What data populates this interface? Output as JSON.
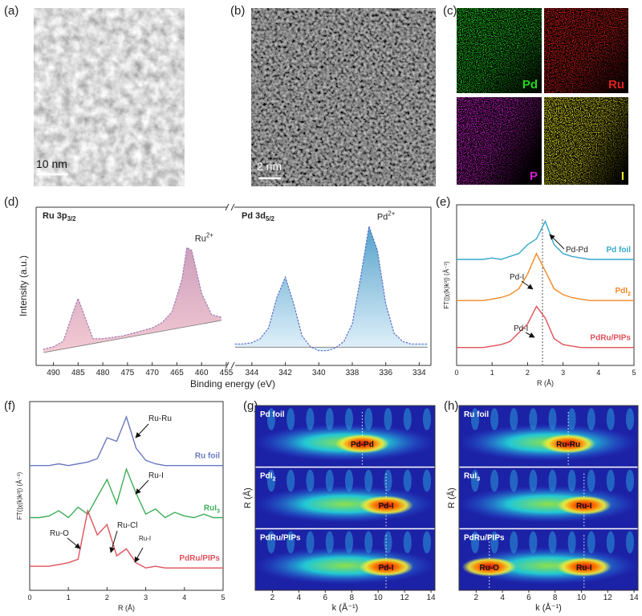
{
  "images": [
    {
      "label": "(a)",
      "scale_bar": "10 nm"
    },
    {
      "label": "(b)",
      "scale_bar": "2 nm"
    },
    {
      "label": "(c)",
      "maps": [
        {
          "name": "Pd",
          "color": "#22d622"
        },
        {
          "name": "Ru",
          "color": "#e02020"
        },
        {
          "name": "P",
          "color": "#d020d0"
        },
        {
          "name": "I",
          "color": "#e6e020"
        }
      ]
    }
  ],
  "chart_data": [
    {
      "type": "xps",
      "label": "(d)",
      "xlabel": "Binding energy (eV)",
      "ylabel": "Intensity (a.u.)",
      "ylim": [
        0,
        105
      ],
      "segments": [
        {
          "title": {
            "text": "Ru 3p",
            "sub": "3/2"
          },
          "peak_label": {
            "text": "Ru",
            "sup": "2+"
          },
          "color": "#c99ab8",
          "xlim": [
            493.5,
            455
          ],
          "xticks": [
            490,
            485,
            480,
            475,
            470,
            465,
            460,
            455
          ],
          "x": [
            492,
            490,
            488,
            486,
            485,
            484,
            482,
            480,
            478,
            476,
            474,
            472,
            470,
            468,
            466,
            464,
            463,
            462,
            460,
            458,
            456
          ],
          "values": [
            6,
            8,
            12,
            34,
            44,
            34,
            14,
            14,
            15,
            16,
            18,
            20,
            22,
            26,
            34,
            58,
            82,
            80,
            48,
            32,
            30
          ]
        },
        {
          "title": {
            "text": "Pd 3d",
            "sub": "5/2"
          },
          "peak_label": {
            "text": "Pd",
            "sup": "2+"
          },
          "color": "#4a9cc8",
          "xlim": [
            345,
            333.3
          ],
          "xticks": [
            344,
            342,
            340,
            338,
            336,
            334
          ],
          "x": [
            345,
            344.5,
            344,
            343.5,
            343,
            342.5,
            342,
            341.5,
            341,
            340.5,
            340,
            339.5,
            339,
            338.5,
            338,
            337.5,
            337,
            336.5,
            336,
            335.5,
            335,
            334.5,
            334,
            333.5
          ],
          "values": [
            10,
            10,
            11,
            14,
            22,
            45,
            60,
            40,
            16,
            8,
            5,
            5,
            7,
            12,
            25,
            60,
            98,
            80,
            40,
            18,
            12,
            10,
            10,
            10
          ]
        }
      ]
    },
    {
      "type": "line",
      "label": "(e)",
      "xlabel": "R (Å)",
      "ylabel": "FT(|χ(k)k³|) (Å⁻³)",
      "xlim": [
        0,
        5
      ],
      "xticks": [
        0,
        1,
        2,
        3,
        4,
        5
      ],
      "ylim": [
        0,
        105
      ],
      "x": [
        0,
        0.25,
        0.5,
        0.75,
        1,
        1.25,
        1.5,
        1.75,
        2,
        2.25,
        2.5,
        2.75,
        3,
        3.25,
        3.5,
        3.75,
        4,
        4.25,
        4.5,
        4.75,
        5
      ],
      "series": [
        {
          "name": "Pd foil",
          "color": "#36a8cc",
          "values": [
            70,
            70,
            70,
            70,
            71,
            70,
            72,
            74,
            80,
            84,
            96,
            80,
            74,
            72,
            71,
            70,
            70,
            70,
            70,
            70,
            70
          ]
        },
        {
          "name": {
            "text": "PdI",
            "sub": "2"
          },
          "color": "#f08a24",
          "values": [
            42,
            42,
            42,
            42,
            43,
            44,
            46,
            50,
            60,
            74,
            62,
            50,
            46,
            44,
            43,
            42,
            42,
            42,
            42,
            42,
            42
          ]
        },
        {
          "name": "PdRu/PIPs",
          "color": "#e0505a",
          "values": [
            10,
            10,
            10,
            10,
            11,
            12,
            14,
            20,
            26,
            38,
            30,
            16,
            12,
            11,
            10,
            10,
            10,
            10,
            10,
            10,
            10
          ]
        }
      ],
      "annotations": [
        "Pd-Pd",
        "Pd-I",
        "Pd-I"
      ]
    },
    {
      "type": "line",
      "label": "(f)",
      "xlabel": "R (Å)",
      "ylabel": "FT(|χ(k)k³|) (Å⁻³)",
      "xlim": [
        0,
        5
      ],
      "xticks": [
        0,
        1,
        2,
        3,
        4,
        5
      ],
      "ylim": [
        0,
        105
      ],
      "x": [
        0,
        0.25,
        0.5,
        0.75,
        1,
        1.25,
        1.5,
        1.75,
        2,
        2.25,
        2.5,
        2.75,
        3,
        3.25,
        3.5,
        3.75,
        4,
        4.25,
        4.5,
        4.75,
        5
      ],
      "series": [
        {
          "name": "Ru foil",
          "color": "#6a78c0",
          "values": [
            70,
            70,
            70,
            71,
            70,
            71,
            72,
            74,
            86,
            84,
            98,
            80,
            73,
            71,
            70,
            70,
            70,
            70,
            70,
            70,
            70
          ]
        },
        {
          "name": {
            "text": "RuI",
            "sub": "3"
          },
          "color": "#3fae5a",
          "values": [
            40,
            40,
            41,
            44,
            40,
            46,
            42,
            52,
            62,
            48,
            68,
            54,
            42,
            45,
            40,
            43,
            41,
            40,
            42,
            40,
            40
          ]
        },
        {
          "name": "PdRu/PIPs",
          "color": "#e0505a",
          "values": [
            12,
            12,
            12,
            13,
            14,
            16,
            44,
            30,
            36,
            18,
            22,
            14,
            11,
            12,
            11,
            11,
            11,
            11,
            11,
            11,
            11
          ]
        }
      ],
      "annotations": [
        "Ru-Ru",
        "Ru-I",
        "Ru-O",
        "Ru-Cl",
        "Ru-I"
      ]
    },
    {
      "type": "wavelet",
      "label": "(g)",
      "xlabel": "k (Å⁻¹)",
      "ylabel": "R (Å)",
      "xlim": [
        0.7,
        14.3
      ],
      "xticks": [
        2,
        4,
        6,
        8,
        10,
        12,
        14
      ],
      "rows": [
        {
          "name": "Pd foil",
          "peaks": [
            {
              "label": "Pd-Pd",
              "k": 8.8
            }
          ]
        },
        {
          "name": {
            "text": "PdI",
            "sub": "2"
          },
          "peaks": [
            {
              "label": "Pd-I",
              "k": 10.6
            }
          ]
        },
        {
          "name": "PdRu/PIPs",
          "peaks": [
            {
              "label": "Pd-I",
              "k": 10.6
            }
          ]
        }
      ]
    },
    {
      "type": "wavelet",
      "label": "(h)",
      "xlabel": "k (Å⁻¹)",
      "ylabel": "R (Å)",
      "xlim": [
        0.7,
        14.3
      ],
      "xticks": [
        2,
        4,
        6,
        8,
        10,
        12,
        14
      ],
      "rows": [
        {
          "name": "Ru foil",
          "peaks": [
            {
              "label": "Ru-Ru",
              "k": 9.0
            }
          ]
        },
        {
          "name": {
            "text": "RuI",
            "sub": "3"
          },
          "peaks": [
            {
              "label": "Ru-I",
              "k": 10.2
            }
          ]
        },
        {
          "name": "PdRu/PIPs",
          "peaks": [
            {
              "label": "Ru-O",
              "k": 3.0
            },
            {
              "label": "Ru-I",
              "k": 10.2
            }
          ]
        }
      ]
    }
  ]
}
